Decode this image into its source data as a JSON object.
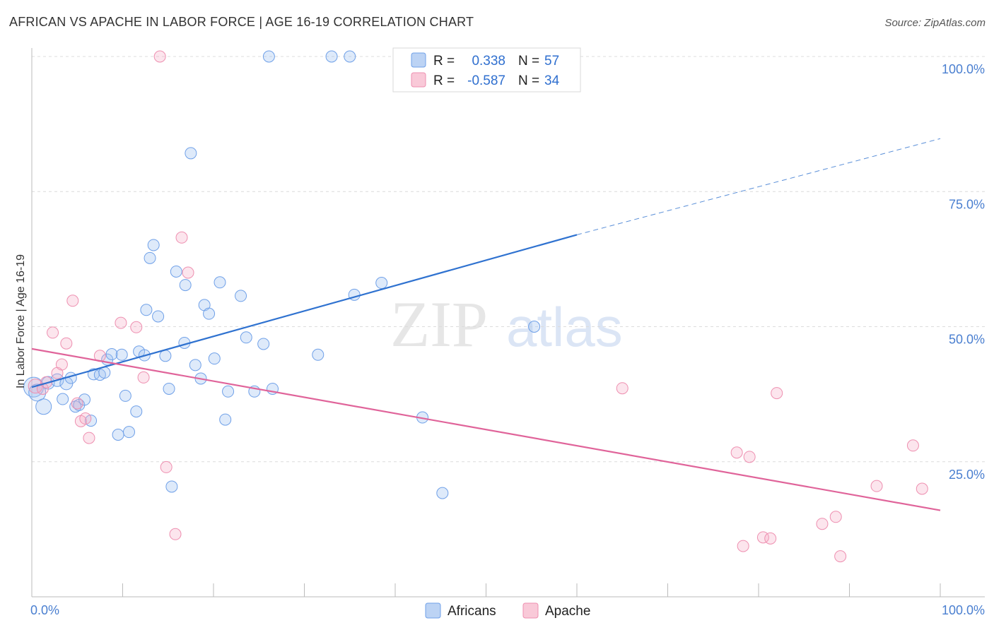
{
  "title": "AFRICAN VS APACHE IN LABOR FORCE | AGE 16-19 CORRELATION CHART",
  "source": "Source: ZipAtlas.com",
  "watermark": {
    "zip": "ZIP",
    "atlas": "atlas"
  },
  "chart_data": {
    "type": "scatter",
    "ylabel": "In Labor Force | Age 16-19",
    "xlim": [
      0,
      100
    ],
    "ylim": [
      0,
      100
    ],
    "y_ticks": [
      "100.0%",
      "75.0%",
      "50.0%",
      "25.0%"
    ],
    "x_tick_labels": [
      "0.0%",
      "100.0%"
    ],
    "grid": "horizontal dashed",
    "legend_stats": [
      {
        "r_label": "R =",
        "r": "0.338",
        "n_label": "N =",
        "n": "57",
        "color": "#6fa0e8"
      },
      {
        "r_label": "R =",
        "r": "-0.587",
        "n_label": "N =",
        "n": "34",
        "color": "#ee8fb0"
      }
    ],
    "series": [
      {
        "name": "Africans",
        "color": "#6fa0e8",
        "trend": {
          "x0": 0,
          "y0": 38.8,
          "x1": 60,
          "y1": 67.0,
          "dash_to_x": 100,
          "dash_to_y": 84.8
        },
        "points": [
          [
            0.2,
            38.8,
            14
          ],
          [
            0.6,
            37.8,
            12
          ],
          [
            1.3,
            35.2,
            11
          ],
          [
            1.8,
            39.6,
            9
          ],
          [
            2.8,
            40.1,
            9
          ],
          [
            3.4,
            36.6,
            8
          ],
          [
            3.8,
            39.5,
            9
          ],
          [
            4.3,
            40.5,
            8
          ],
          [
            4.8,
            35.2,
            8
          ],
          [
            5.2,
            35.5,
            8
          ],
          [
            5.8,
            36.5,
            8
          ],
          [
            6.5,
            32.6,
            8
          ],
          [
            6.8,
            41.2,
            8
          ],
          [
            7.5,
            41.1,
            8
          ],
          [
            8.0,
            41.5,
            8
          ],
          [
            8.3,
            43.9,
            8
          ],
          [
            8.8,
            44.9,
            8
          ],
          [
            9.5,
            30.0,
            8
          ],
          [
            9.9,
            44.8,
            8
          ],
          [
            10.3,
            37.2,
            8
          ],
          [
            10.7,
            30.5,
            8
          ],
          [
            11.5,
            34.3,
            8
          ],
          [
            11.8,
            45.4,
            8
          ],
          [
            12.4,
            44.7,
            8
          ],
          [
            12.6,
            53.1,
            8
          ],
          [
            13.0,
            62.7,
            8
          ],
          [
            13.4,
            65.1,
            8
          ],
          [
            13.9,
            51.9,
            8
          ],
          [
            14.7,
            44.6,
            8
          ],
          [
            15.1,
            38.5,
            8
          ],
          [
            15.4,
            20.4,
            8
          ],
          [
            15.9,
            60.2,
            8
          ],
          [
            16.8,
            47.0,
            8
          ],
          [
            16.9,
            57.7,
            8
          ],
          [
            17.5,
            82.1,
            8
          ],
          [
            18.0,
            42.9,
            8
          ],
          [
            18.6,
            40.4,
            8
          ],
          [
            19.0,
            54.0,
            8
          ],
          [
            19.5,
            52.4,
            8
          ],
          [
            20.1,
            44.1,
            8
          ],
          [
            20.7,
            58.2,
            8
          ],
          [
            21.3,
            32.8,
            8
          ],
          [
            21.6,
            38.0,
            8
          ],
          [
            23.0,
            55.7,
            8
          ],
          [
            23.6,
            48.0,
            8
          ],
          [
            24.5,
            38.0,
            8
          ],
          [
            25.5,
            46.8,
            8
          ],
          [
            26.1,
            100.0,
            8
          ],
          [
            26.5,
            38.5,
            8
          ],
          [
            31.5,
            44.8,
            8
          ],
          [
            33.0,
            100.0,
            8
          ],
          [
            35.0,
            100.0,
            8
          ],
          [
            35.5,
            55.9,
            8
          ],
          [
            38.5,
            58.1,
            8
          ],
          [
            43.0,
            33.2,
            8
          ],
          [
            45.2,
            19.2,
            8
          ],
          [
            55.3,
            50.0,
            8
          ]
        ]
      },
      {
        "name": "Apache",
        "color": "#ee8fb0",
        "trend": {
          "x0": 0,
          "y0": 45.9,
          "x1": 100,
          "y1": 16.0
        },
        "points": [
          [
            0.4,
            39.0,
            10
          ],
          [
            1.2,
            38.5,
            8
          ],
          [
            1.6,
            39.7,
            8
          ],
          [
            2.3,
            48.9,
            8
          ],
          [
            2.8,
            41.4,
            8
          ],
          [
            3.3,
            43.0,
            8
          ],
          [
            3.8,
            46.9,
            8
          ],
          [
            4.5,
            54.8,
            8
          ],
          [
            5.0,
            35.8,
            8
          ],
          [
            5.4,
            32.5,
            8
          ],
          [
            5.9,
            33.0,
            8
          ],
          [
            6.3,
            29.4,
            8
          ],
          [
            7.5,
            44.6,
            8
          ],
          [
            9.8,
            50.7,
            8
          ],
          [
            11.5,
            49.9,
            8
          ],
          [
            12.3,
            40.6,
            8
          ],
          [
            14.1,
            100.0,
            8
          ],
          [
            14.8,
            24.0,
            8
          ],
          [
            15.8,
            11.6,
            8
          ],
          [
            16.5,
            66.5,
            8
          ],
          [
            17.2,
            60.0,
            8
          ],
          [
            65.0,
            38.6,
            8
          ],
          [
            77.6,
            26.7,
            8
          ],
          [
            78.3,
            9.4,
            8
          ],
          [
            79.0,
            25.9,
            8
          ],
          [
            80.5,
            11.0,
            8
          ],
          [
            81.3,
            10.8,
            8
          ],
          [
            82.0,
            37.7,
            8
          ],
          [
            87.0,
            13.5,
            8
          ],
          [
            88.5,
            14.8,
            8
          ],
          [
            89.0,
            7.5,
            8
          ],
          [
            93.0,
            20.5,
            8
          ],
          [
            97.0,
            28.0,
            8
          ],
          [
            98.0,
            20.0,
            0
          ]
        ]
      }
    ]
  }
}
